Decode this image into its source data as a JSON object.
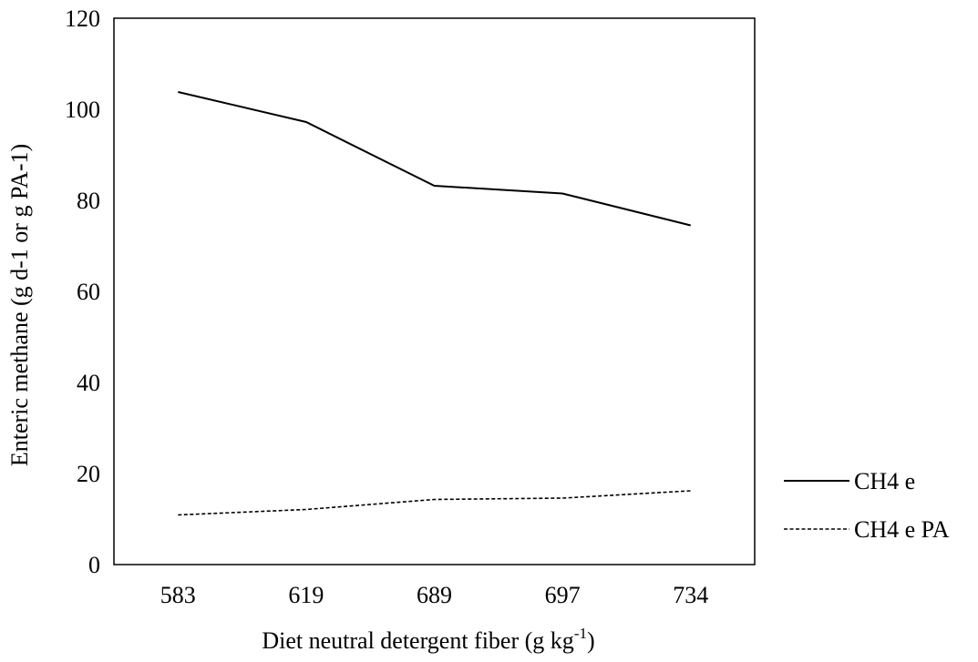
{
  "chart_data": {
    "type": "line",
    "categories": [
      "583",
      "619",
      "689",
      "697",
      "734"
    ],
    "series": [
      {
        "name": "CH4 e",
        "values": [
          103.8,
          97.2,
          83.2,
          81.5,
          74.5
        ],
        "style": "solid",
        "color": "#000000"
      },
      {
        "name": "CH4 e PA",
        "values": [
          10.9,
          12.1,
          14.3,
          14.6,
          16.2
        ],
        "style": "dashed",
        "color": "#000000"
      }
    ],
    "title": "",
    "xlabel": {
      "main": "Diet neutral detergent fiber (g kg",
      "sup": "-1",
      "end": ")"
    },
    "ylabel": "Enteric methane (g d-1 or g PA-1)",
    "ylim": [
      0,
      120
    ],
    "yticks": [
      "0",
      "20",
      "40",
      "60",
      "80",
      "100",
      "120"
    ],
    "grid": false,
    "legend_position": "right"
  }
}
